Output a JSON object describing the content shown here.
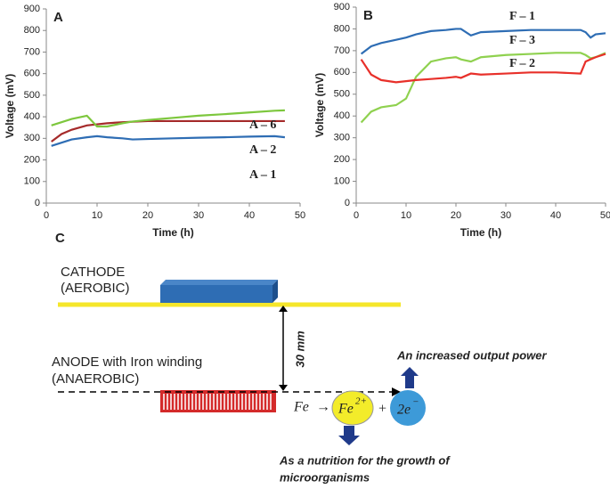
{
  "chart_data": [
    {
      "type": "line",
      "title": "A",
      "xlabel": "Time (h)",
      "ylabel": "Voltage (mV)",
      "x": [
        1,
        3,
        5,
        8,
        10,
        12,
        15,
        17,
        20,
        25,
        30,
        35,
        40,
        45,
        47
      ],
      "series": [
        {
          "name": "A – 1",
          "color": "#2e6db4",
          "values": [
            265,
            280,
            295,
            305,
            310,
            305,
            300,
            295,
            297,
            300,
            303,
            305,
            308,
            310,
            305
          ]
        },
        {
          "name": "A – 2",
          "color": "#a52a2a",
          "values": [
            285,
            320,
            340,
            360,
            365,
            370,
            375,
            377,
            380,
            380,
            380,
            380,
            380,
            380,
            380
          ]
        },
        {
          "name": "A – 6",
          "color": "#7dc73d",
          "values": [
            360,
            375,
            390,
            405,
            355,
            355,
            370,
            378,
            385,
            395,
            405,
            412,
            420,
            428,
            430
          ]
        }
      ],
      "xlim": [
        0,
        50
      ],
      "xticks": [
        0,
        10,
        20,
        30,
        40,
        50
      ],
      "ylim": [
        0,
        900
      ],
      "yticks": [
        0,
        100,
        200,
        300,
        400,
        500,
        600,
        700,
        800,
        900
      ]
    },
    {
      "type": "line",
      "title": "B",
      "xlabel": "Time (h)",
      "ylabel": "Voltage (mV)",
      "x": [
        1,
        3,
        5,
        8,
        10,
        12,
        15,
        18,
        20,
        21,
        23,
        25,
        30,
        35,
        40,
        45,
        46,
        47,
        48,
        50
      ],
      "series": [
        {
          "name": "F – 1",
          "color": "#2e6db4",
          "values": [
            685,
            720,
            735,
            750,
            760,
            775,
            790,
            795,
            800,
            800,
            770,
            785,
            790,
            795,
            795,
            795,
            785,
            760,
            775,
            780
          ]
        },
        {
          "name": "F – 3",
          "color": "#8fd14f",
          "values": [
            370,
            420,
            440,
            450,
            480,
            580,
            650,
            665,
            670,
            660,
            650,
            670,
            680,
            685,
            690,
            690,
            680,
            665,
            670,
            690
          ]
        },
        {
          "name": "F – 2",
          "color": "#e8302a",
          "values": [
            660,
            590,
            565,
            555,
            560,
            565,
            570,
            575,
            580,
            575,
            595,
            590,
            595,
            600,
            600,
            595,
            650,
            660,
            670,
            685
          ]
        }
      ],
      "xlim": [
        0,
        50
      ],
      "xticks": [
        0,
        10,
        20,
        30,
        40,
        50
      ],
      "ylim": [
        0,
        900
      ],
      "yticks": [
        0,
        100,
        200,
        300,
        400,
        500,
        600,
        700,
        800,
        900
      ]
    }
  ],
  "diagram": {
    "label": "C",
    "cathode": [
      "CATHODE",
      "(AEROBIC)"
    ],
    "anode": [
      "ANODE with Iron winding",
      "(ANAEROBIC)"
    ],
    "distance": "30 mm",
    "output": "An increased output power",
    "reaction": {
      "fe": "Fe",
      "arrow": "→",
      "ion": "Fe",
      "charge": "2+",
      "plus": "+",
      "electrons": "2e",
      "electron_sign": "−"
    },
    "nutrition": [
      "As a nutrition for the growth of",
      "microorganisms"
    ]
  }
}
